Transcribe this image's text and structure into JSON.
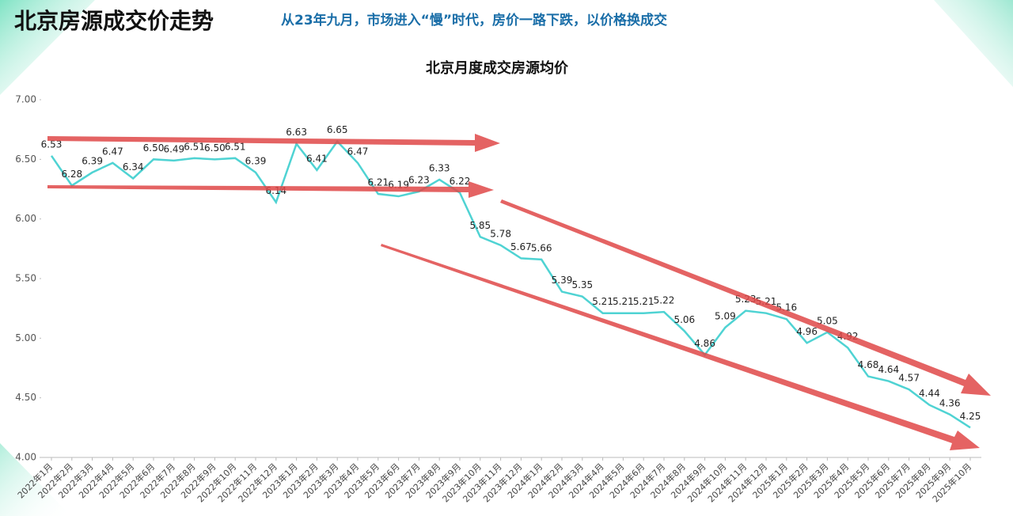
{
  "chart_data": {
    "type": "line",
    "title": "北京房源成交价走势",
    "subtitle": "从23年九月，市场进入“慢”时代，房价一路下跌，以价格换成交",
    "chart_title": "北京月度成交房源均价",
    "categories": [
      "2022年1月",
      "2022年2月",
      "2022年3月",
      "2022年4月",
      "2022年5月",
      "2022年6月",
      "2022年7月",
      "2022年8月",
      "2022年9月",
      "2022年10月",
      "2022年11月",
      "2022年12月",
      "2023年1月",
      "2023年2月",
      "2023年3月",
      "2023年4月",
      "2023年5月",
      "2023年6月",
      "2023年7月",
      "2023年8月",
      "2023年9月",
      "2023年10月",
      "2023年11月",
      "2023年12月",
      "2024年1月",
      "2024年2月",
      "2024年3月",
      "2024年4月",
      "2024年5月",
      "2024年6月",
      "2024年7月",
      "2024年8月",
      "2024年9月",
      "2024年10月",
      "2024年11月",
      "2024年12月",
      "2025年1月",
      "2025年2月",
      "2025年3月",
      "2025年4月",
      "2025年5月",
      "2025年6月",
      "2025年7月",
      "2025年8月",
      "2025年9月",
      "2025年10月"
    ],
    "values": [
      6.53,
      6.28,
      6.39,
      6.47,
      6.34,
      6.5,
      6.49,
      6.51,
      6.5,
      6.51,
      6.39,
      6.14,
      6.63,
      6.41,
      6.65,
      6.47,
      6.21,
      6.19,
      6.23,
      6.33,
      6.22,
      5.85,
      5.78,
      5.67,
      5.66,
      5.39,
      5.35,
      5.21,
      5.21,
      5.21,
      5.22,
      5.06,
      4.86,
      5.09,
      5.23,
      5.21,
      5.16,
      4.96,
      5.05,
      4.92,
      4.68,
      4.64,
      4.57,
      4.44,
      4.36,
      4.25
    ],
    "value_labels": [
      "6.53",
      "6.28",
      "6.39",
      "6.47",
      "6.34",
      "6.50",
      "6.49",
      "6.51",
      "6.50",
      "6.51",
      "6.39",
      "6.14",
      "6.63",
      "6.41",
      "6.65",
      "6.47",
      "6.21",
      "6.19",
      "6.23",
      "6.33",
      "6.22",
      "5.85",
      "5.78",
      "5.67",
      "5.66",
      "5.39",
      "5.35",
      "5.21",
      "5.21",
      "5.21",
      "5.22",
      "5.06",
      "4.86",
      "5.09",
      "5.23",
      "5.21",
      "5.16",
      "4.96",
      "5.05",
      "4.92",
      "4.68",
      "4.64",
      "4.57",
      "4.44",
      "4.36",
      "4.25"
    ],
    "color": "#4fd3d3",
    "ylim": [
      4,
      7
    ],
    "yticks": [
      {
        "value": 4,
        "label": "4.00"
      },
      {
        "value": 4.5,
        "label": "4.50"
      },
      {
        "value": 5,
        "label": "5.00"
      },
      {
        "value": 5.5,
        "label": "5.50"
      },
      {
        "value": 6,
        "label": "6.00"
      },
      {
        "value": 6.5,
        "label": "6.50"
      },
      {
        "value": 7,
        "label": "7.00"
      }
    ]
  }
}
